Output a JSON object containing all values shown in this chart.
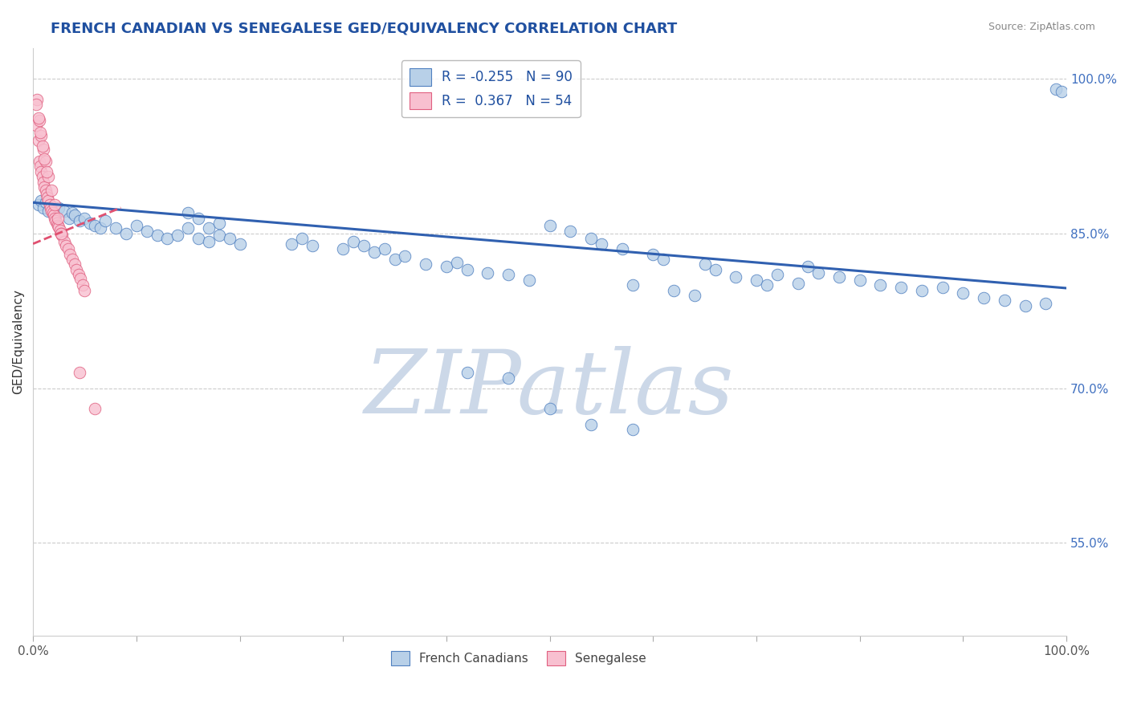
{
  "title": "FRENCH CANADIAN VS SENEGALESE GED/EQUIVALENCY CORRELATION CHART",
  "source_text": "Source: ZipAtlas.com",
  "ylabel": "GED/Equivalency",
  "xlim": [
    0.0,
    1.0
  ],
  "ylim": [
    0.46,
    1.03
  ],
  "right_yticks": [
    1.0,
    0.85,
    0.7,
    0.55
  ],
  "right_yticklabels": [
    "100.0%",
    "85.0%",
    "70.0%",
    "55.0%"
  ],
  "legend_blue_label": "R = -0.255   N = 90",
  "legend_pink_label": "R =  0.367   N = 54",
  "blue_color": "#b8d0e8",
  "blue_edge_color": "#5080c0",
  "pink_color": "#f8c0d0",
  "pink_edge_color": "#e06080",
  "blue_line_color": "#3060b0",
  "pink_line_color": "#e05070",
  "watermark": "ZIPatlas",
  "watermark_color": "#ccd8e8",
  "grid_color": "#cccccc",
  "background_color": "#ffffff",
  "title_color": "#2050a0",
  "source_color": "#888888",
  "axis_label_color": "#333333",
  "right_tick_color": "#4070c0",
  "blue_line_x0": 0.0,
  "blue_line_y0": 0.88,
  "blue_line_x1": 1.0,
  "blue_line_y1": 0.797,
  "pink_line_x0": 0.0,
  "pink_line_y0": 0.84,
  "pink_line_x1": 0.085,
  "pink_line_y1": 0.875,
  "blue_scatter_x": [
    0.005,
    0.008,
    0.01,
    0.012,
    0.015,
    0.018,
    0.02,
    0.022,
    0.025,
    0.03,
    0.035,
    0.038,
    0.04,
    0.045,
    0.05,
    0.055,
    0.06,
    0.065,
    0.07,
    0.08,
    0.09,
    0.1,
    0.11,
    0.12,
    0.13,
    0.14,
    0.15,
    0.16,
    0.17,
    0.18,
    0.19,
    0.2,
    0.15,
    0.16,
    0.17,
    0.18,
    0.25,
    0.26,
    0.27,
    0.3,
    0.31,
    0.32,
    0.33,
    0.34,
    0.35,
    0.36,
    0.38,
    0.4,
    0.41,
    0.42,
    0.44,
    0.46,
    0.48,
    0.5,
    0.52,
    0.54,
    0.55,
    0.57,
    0.58,
    0.6,
    0.61,
    0.62,
    0.64,
    0.65,
    0.66,
    0.68,
    0.7,
    0.71,
    0.72,
    0.74,
    0.75,
    0.76,
    0.78,
    0.8,
    0.82,
    0.84,
    0.86,
    0.88,
    0.9,
    0.92,
    0.94,
    0.96,
    0.98,
    0.99,
    0.995,
    0.42,
    0.46,
    0.5,
    0.54,
    0.58
  ],
  "blue_scatter_y": [
    0.878,
    0.882,
    0.875,
    0.88,
    0.872,
    0.876,
    0.87,
    0.868,
    0.875,
    0.872,
    0.865,
    0.87,
    0.868,
    0.862,
    0.865,
    0.86,
    0.858,
    0.855,
    0.862,
    0.855,
    0.85,
    0.858,
    0.852,
    0.848,
    0.845,
    0.848,
    0.855,
    0.845,
    0.842,
    0.848,
    0.845,
    0.84,
    0.87,
    0.865,
    0.855,
    0.86,
    0.84,
    0.845,
    0.838,
    0.835,
    0.842,
    0.838,
    0.832,
    0.835,
    0.825,
    0.828,
    0.82,
    0.818,
    0.822,
    0.815,
    0.812,
    0.81,
    0.805,
    0.858,
    0.852,
    0.845,
    0.84,
    0.835,
    0.8,
    0.83,
    0.825,
    0.795,
    0.79,
    0.82,
    0.815,
    0.808,
    0.805,
    0.8,
    0.81,
    0.802,
    0.818,
    0.812,
    0.808,
    0.805,
    0.8,
    0.798,
    0.795,
    0.798,
    0.792,
    0.788,
    0.785,
    0.78,
    0.782,
    0.99,
    0.988,
    0.715,
    0.71,
    0.68,
    0.665,
    0.66
  ],
  "pink_scatter_x": [
    0.003,
    0.005,
    0.006,
    0.007,
    0.008,
    0.009,
    0.01,
    0.011,
    0.012,
    0.013,
    0.014,
    0.015,
    0.016,
    0.017,
    0.018,
    0.019,
    0.02,
    0.021,
    0.022,
    0.023,
    0.024,
    0.025,
    0.026,
    0.027,
    0.028,
    0.03,
    0.032,
    0.034,
    0.036,
    0.038,
    0.04,
    0.042,
    0.044,
    0.046,
    0.048,
    0.05,
    0.004,
    0.006,
    0.008,
    0.01,
    0.012,
    0.015,
    0.018,
    0.021,
    0.024,
    0.027,
    0.003,
    0.005,
    0.007,
    0.009,
    0.011,
    0.013,
    0.045,
    0.06
  ],
  "pink_scatter_y": [
    0.955,
    0.94,
    0.92,
    0.915,
    0.91,
    0.905,
    0.9,
    0.895,
    0.892,
    0.888,
    0.885,
    0.882,
    0.878,
    0.875,
    0.872,
    0.87,
    0.868,
    0.865,
    0.862,
    0.86,
    0.858,
    0.856,
    0.853,
    0.85,
    0.848,
    0.842,
    0.838,
    0.835,
    0.83,
    0.825,
    0.82,
    0.815,
    0.81,
    0.806,
    0.8,
    0.795,
    0.98,
    0.96,
    0.945,
    0.932,
    0.92,
    0.905,
    0.892,
    0.878,
    0.865,
    0.85,
    0.975,
    0.962,
    0.948,
    0.935,
    0.922,
    0.91,
    0.715,
    0.68
  ]
}
